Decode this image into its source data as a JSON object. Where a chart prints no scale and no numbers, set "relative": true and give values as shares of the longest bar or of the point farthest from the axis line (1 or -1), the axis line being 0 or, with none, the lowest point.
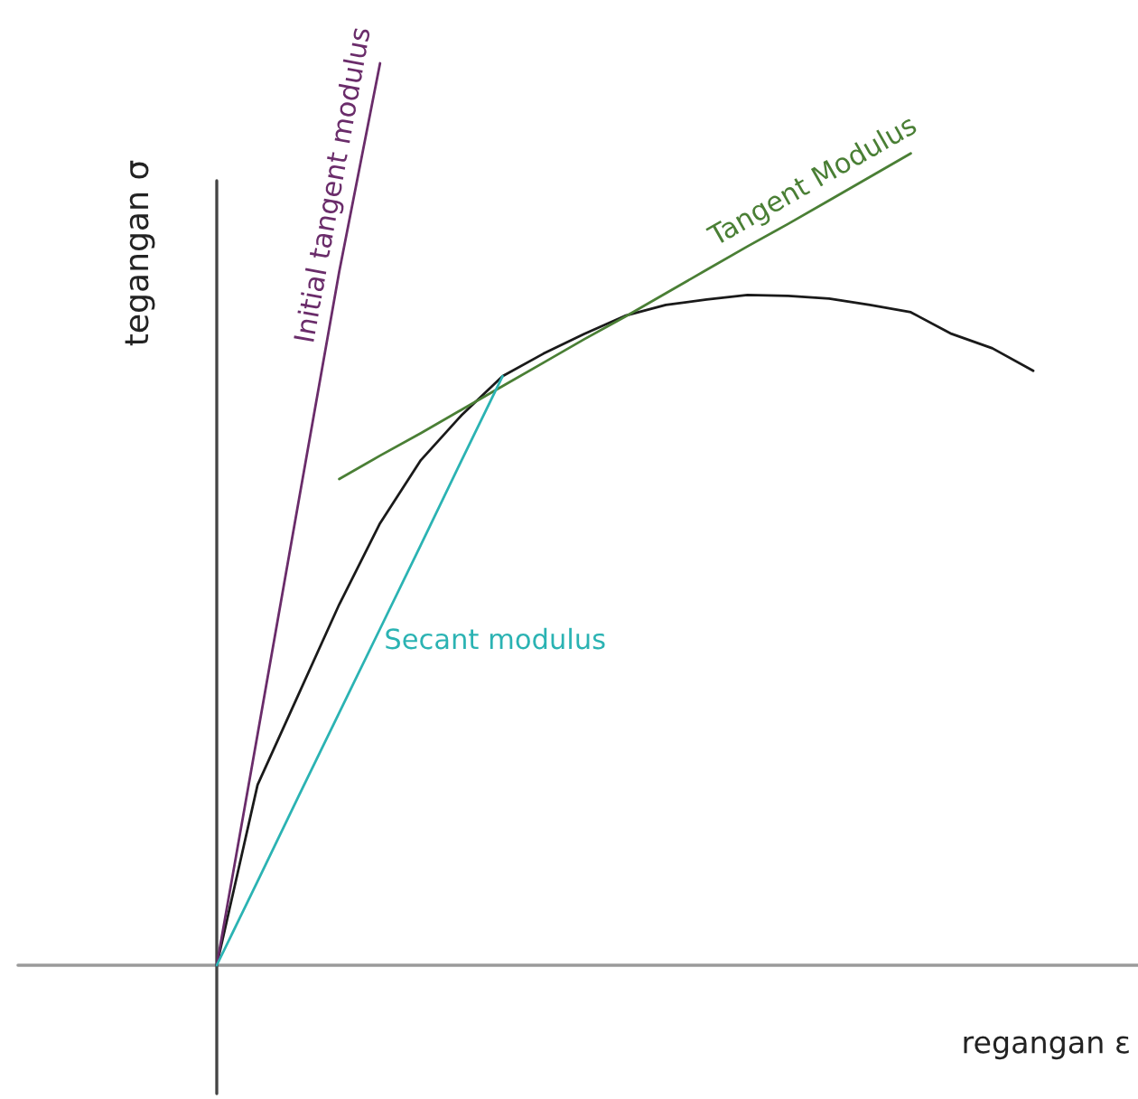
{
  "chart_data": {
    "type": "line",
    "relative": true,
    "xlabel": "regangan ε",
    "ylabel": "tegangan σ",
    "categories": [
      null,
      null,
      null,
      null,
      null,
      null,
      null,
      null,
      null,
      null,
      null,
      null,
      null,
      null,
      null,
      null,
      null,
      null,
      null,
      null,
      null
    ],
    "series": [
      {
        "color": "#1a1a1a",
        "values": [
          0,
          0.2,
          0.3,
          0.4,
          0.49,
          0.56,
          0.61,
          0.653,
          0.678,
          0.7,
          0.72,
          0.732,
          0.738,
          0.743,
          0.742,
          0.739,
          0.732,
          0.724,
          0.7,
          0.684,
          0.659
        ]
      },
      {
        "name": "Initial tangent modulus",
        "color": "#6a2c6a",
        "values": [
          0,
          0.256,
          0.513,
          0.769,
          1.0,
          null,
          null,
          null,
          null,
          null,
          null,
          null,
          null,
          null,
          null,
          null,
          null,
          null,
          null,
          null,
          null
        ]
      },
      {
        "name": "Tangent Modulus",
        "color": "#4a7f35",
        "values": [
          null,
          null,
          null,
          0.539,
          0.565,
          0.59,
          0.616,
          0.642,
          0.668,
          0.694,
          0.719,
          0.745,
          0.771,
          0.797,
          0.822,
          0.848,
          0.874,
          0.9,
          null,
          null,
          null
        ]
      },
      {
        "name": "Secant modulus",
        "color": "#2bb3b3",
        "values": [
          0,
          0.093,
          0.187,
          0.28,
          0.373,
          0.466,
          0.56,
          0.653,
          null,
          null,
          null,
          null,
          null,
          null,
          null,
          null,
          null,
          null,
          null,
          null,
          null
        ]
      }
    ]
  }
}
